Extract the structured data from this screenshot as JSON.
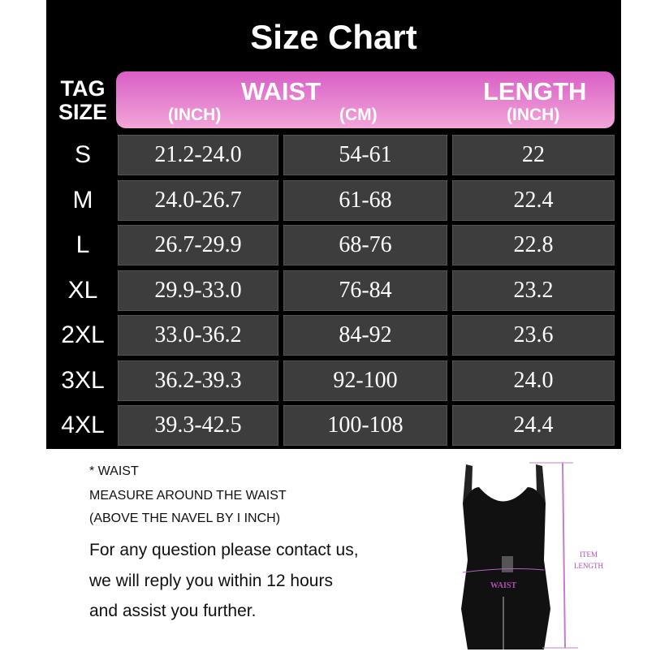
{
  "title": "Size Chart",
  "header": {
    "tag_size": [
      "TAG",
      "SIZE"
    ],
    "waist": "WAIST",
    "waist_inch": "(INCH)",
    "waist_cm": "(CM)",
    "length": "LENGTH",
    "length_inch": "(INCH)"
  },
  "rows": [
    {
      "size": "S",
      "inch": "21.2-24.0",
      "cm": "54-61",
      "length": "22"
    },
    {
      "size": "M",
      "inch": "24.0-26.7",
      "cm": "61-68",
      "length": "22.4"
    },
    {
      "size": "L",
      "inch": "26.7-29.9",
      "cm": "68-76",
      "length": "22.8"
    },
    {
      "size": "XL",
      "inch": "29.9-33.0",
      "cm": "76-84",
      "length": "23.2"
    },
    {
      "size": "2XL",
      "inch": "33.0-36.2",
      "cm": "84-92",
      "length": "23.6"
    },
    {
      "size": "3XL",
      "inch": "36.2-39.3",
      "cm": "92-100",
      "length": "24.0"
    },
    {
      "size": "4XL",
      "inch": "39.3-42.5",
      "cm": "100-108",
      "length": "24.4"
    }
  ],
  "notes": {
    "line1": "* WAIST",
    "line2": "MEASURE AROUND THE WAIST",
    "line3": "(ABOVE THE NAVEL BY I INCH)"
  },
  "message": [
    "For any question please contact us,",
    "we will reply you within 12 hours",
    "and assist you further."
  ],
  "diagram": {
    "waist_label": "WAIST",
    "length_label_1": "ITEM",
    "length_label_2": "LENGTH"
  },
  "colors": {
    "header_top": "#d95ec6",
    "header_bottom": "#f2a6d9",
    "cell": "#3d3d3d",
    "measure": "#b660c0"
  }
}
